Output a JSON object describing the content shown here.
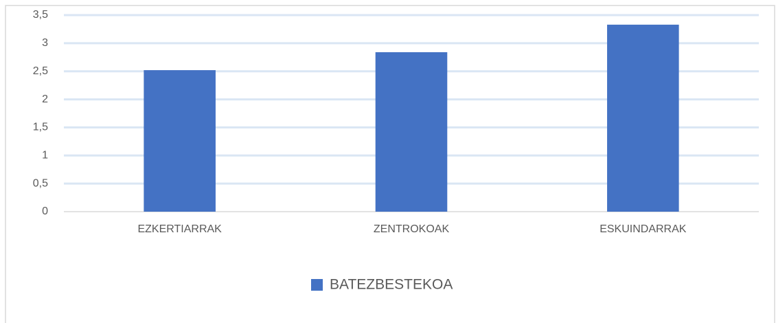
{
  "chart_data": {
    "type": "bar",
    "categories": [
      "EZKERTIARRAK",
      "ZENTROKOAK",
      "ESKUINDARRAK"
    ],
    "series": [
      {
        "name": "BATEZBESTEKOA",
        "color": "#4472c4",
        "values": [
          2.52,
          2.84,
          3.33
        ]
      }
    ],
    "ylim": [
      0,
      3.5
    ],
    "yticks": [
      0,
      {
        "value": 0.5,
        "label": "0,5"
      },
      1,
      {
        "value": 1.5,
        "label": "1,5"
      },
      2,
      {
        "value": 2.5,
        "label": "2,5"
      },
      3,
      {
        "value": 3.5,
        "label": "3,5"
      }
    ],
    "grid": true,
    "legend": "bottom"
  }
}
